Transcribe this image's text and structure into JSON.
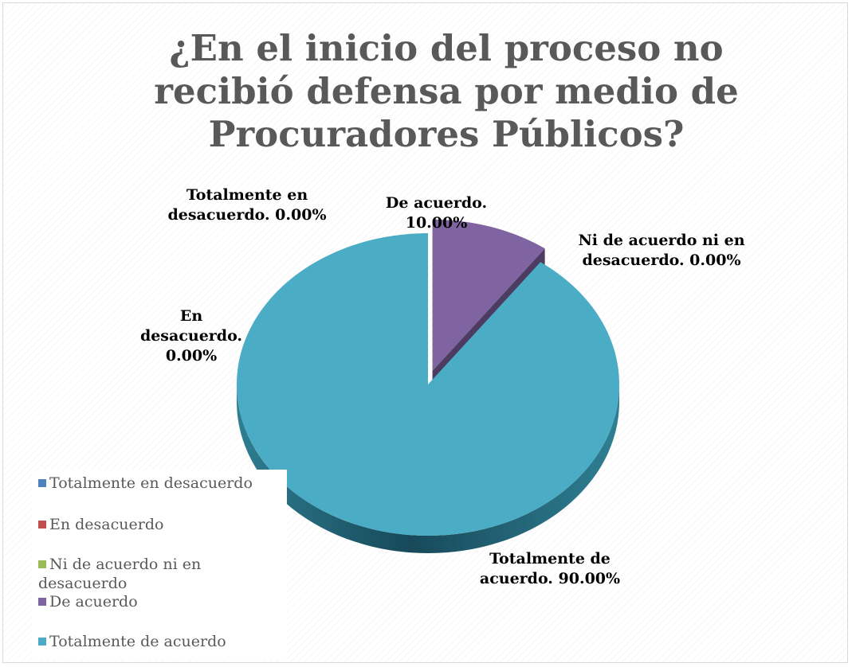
{
  "chart_data": {
    "type": "pie",
    "title": "¿En el inicio del proceso no recibió defensa por medio de Procuradores Públicos?",
    "categories": [
      "Totalmente en desacuerdo",
      "En desacuerdo",
      "Ni de acuerdo ni en desacuerdo",
      "De acuerdo",
      "Totalmente de acuerdo"
    ],
    "values": [
      0,
      0,
      0,
      10,
      90
    ],
    "colors": [
      "#4f81bd",
      "#c0504d",
      "#9bbb59",
      "#8064a2",
      "#4bacc6"
    ],
    "data_labels": [
      "Totalmente en desacuerdo. 0.00%",
      "En desacuerdo. 0.00%",
      "Ni de acuerdo ni en desacuerdo. 0.00%",
      "De acuerdo. 10.00%",
      "Totalmente de acuerdo. 90.00%"
    ],
    "exploded_slice": "De acuerdo",
    "legend_position": "bottom-left",
    "style": "3d"
  }
}
